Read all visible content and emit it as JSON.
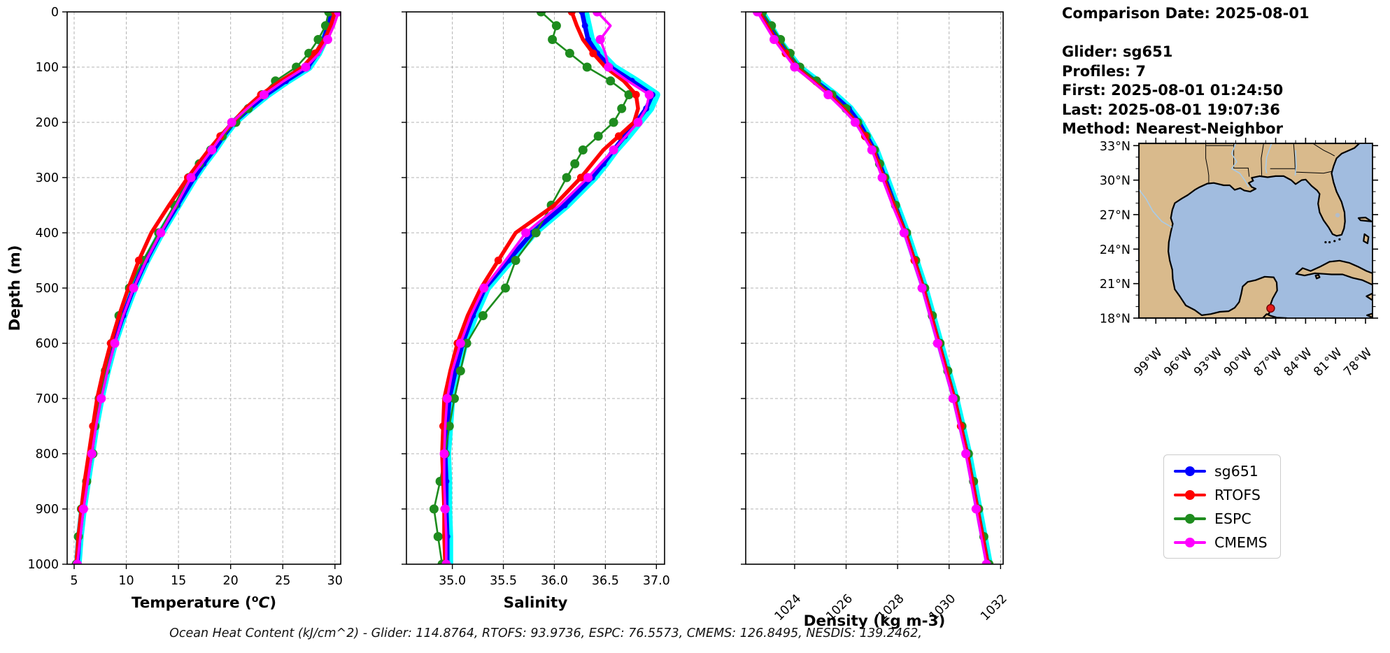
{
  "info_panel": {
    "lines": [
      "Comparison Date: 2025-08-01",
      "",
      "Glider: sg651",
      "Profiles: 7",
      "First: 2025-08-01 01:24:50",
      "Last: 2025-08-01 19:07:36",
      "Method: Nearest-Neighbor"
    ]
  },
  "legend": {
    "items": [
      {
        "label": "sg651",
        "color": "#0000ff"
      },
      {
        "label": "RTOFS",
        "color": "#ff0000"
      },
      {
        "label": "ESPC",
        "color": "#1e8c1e"
      },
      {
        "label": "CMEMS",
        "color": "#ff00ff"
      }
    ]
  },
  "caption": "Ocean Heat Content (kJ/cm^2) - Glider: 114.8764,  RTOFS: 93.9736,  ESPC: 76.5573,  CMEMS: 126.8495,  NESDIS: 139.2462,",
  "chart_data": [
    {
      "type": "line",
      "id": "temperature",
      "xlabel": {
        "pre": "Temperature (",
        "sup": "o",
        "it": "C",
        "post": ")"
      },
      "ylabel": "Depth (m)",
      "xlim": [
        4.33,
        30.55
      ],
      "ylim": [
        0,
        1000
      ],
      "xticks": [
        5,
        10,
        15,
        20,
        25,
        30
      ],
      "xtick_labels": [
        "5",
        "10",
        "15",
        "20",
        "25",
        "30"
      ],
      "yticks": [
        0,
        100,
        200,
        300,
        400,
        500,
        600,
        700,
        800,
        900,
        1000
      ],
      "ytick_labels": [
        "0",
        "100",
        "200",
        "300",
        "400",
        "500",
        "600",
        "700",
        "800",
        "900",
        "1000"
      ],
      "show_ytick_labels": true,
      "grid": true,
      "depths": [
        0,
        25,
        50,
        75,
        100,
        125,
        150,
        175,
        200,
        225,
        250,
        275,
        300,
        350,
        400,
        450,
        500,
        550,
        600,
        650,
        700,
        750,
        800,
        850,
        900,
        950,
        1000
      ],
      "series": [
        {
          "name": "glider-profiles",
          "color": "#00ffff",
          "role": "underlay",
          "values": [
            29.9,
            29.5,
            29.0,
            28.4,
            27.5,
            25.4,
            23.5,
            21.85,
            20.35,
            19.35,
            18.45,
            17.45,
            16.55,
            14.95,
            13.35,
            11.95,
            10.75,
            9.75,
            8.85,
            8.15,
            7.55,
            7.05,
            6.65,
            6.25,
            5.85,
            5.55,
            5.35
          ]
        },
        {
          "name": "sg651",
          "color": "#0000ff",
          "values": [
            29.7,
            29.35,
            28.9,
            28.3,
            27.4,
            25.3,
            23.4,
            21.8,
            20.3,
            19.3,
            18.4,
            17.4,
            16.5,
            14.9,
            13.3,
            11.9,
            10.7,
            9.7,
            8.8,
            8.1,
            7.5,
            7.0,
            6.6,
            6.2,
            5.8,
            5.5,
            5.3
          ]
        },
        {
          "name": "ESPC",
          "color": "#1e8c1e",
          "values": [
            29.4,
            29.1,
            28.4,
            27.5,
            26.3,
            24.3,
            23.0,
            21.7,
            20.5,
            19.2,
            18.1,
            17.0,
            16.0,
            14.6,
            13.1,
            11.6,
            10.3,
            9.3,
            8.6,
            8.0,
            7.4,
            7.0,
            6.8,
            6.2,
            5.7,
            5.4,
            5.2
          ]
        },
        {
          "name": "RTOFS",
          "color": "#ff0000",
          "values": [
            30.0,
            29.6,
            29.0,
            28.1,
            26.9,
            24.8,
            22.9,
            21.4,
            20.2,
            19.0,
            17.9,
            16.9,
            15.9,
            14.1,
            12.4,
            11.2,
            10.2,
            9.3,
            8.5,
            7.8,
            7.2,
            6.8,
            6.4,
            6.0,
            5.7,
            5.4,
            5.2
          ]
        },
        {
          "name": "CMEMS",
          "color": "#ff00ff",
          "values": [
            30.35,
            29.9,
            29.3,
            28.5,
            27.2,
            25.1,
            23.2,
            21.6,
            20.1,
            19.1,
            18.2,
            17.2,
            16.2,
            14.8,
            13.3,
            11.9,
            10.7,
            9.7,
            8.9,
            8.2,
            7.6,
            7.1,
            6.7,
            6.3,
            5.9,
            5.6,
            5.3
          ]
        }
      ]
    },
    {
      "type": "line",
      "id": "salinity",
      "xlabel": {
        "pre": "Salinity"
      },
      "xlim": [
        34.55,
        37.08
      ],
      "ylim": [
        0,
        1000
      ],
      "xticks": [
        35.0,
        35.5,
        36.0,
        36.5,
        37.0
      ],
      "xtick_labels": [
        "35.0",
        "35.5",
        "36.0",
        "36.5",
        "37.0"
      ],
      "yticks": [
        0,
        100,
        200,
        300,
        400,
        500,
        600,
        700,
        800,
        900,
        1000
      ],
      "show_ytick_labels": false,
      "grid": true,
      "depths": [
        0,
        25,
        50,
        75,
        100,
        125,
        150,
        175,
        200,
        225,
        250,
        275,
        300,
        350,
        400,
        450,
        500,
        550,
        600,
        650,
        700,
        750,
        800,
        850,
        900,
        950,
        1000
      ],
      "series": [
        {
          "name": "glider-profiles",
          "color": "#00ffff",
          "role": "underlay",
          "values": [
            36.3,
            36.33,
            36.36,
            36.45,
            36.58,
            36.8,
            37.0,
            36.94,
            36.83,
            36.72,
            36.6,
            36.5,
            36.39,
            36.12,
            35.8,
            35.57,
            35.34,
            35.22,
            35.12,
            35.05,
            34.99,
            34.97,
            34.95,
            34.96,
            34.96,
            34.97,
            34.97
          ]
        },
        {
          "name": "sg651",
          "color": "#0000ff",
          "values": [
            36.27,
            36.3,
            36.33,
            36.42,
            36.55,
            36.76,
            36.96,
            36.9,
            36.8,
            36.69,
            36.58,
            36.48,
            36.37,
            36.1,
            35.78,
            35.55,
            35.32,
            35.2,
            35.1,
            35.03,
            34.97,
            34.95,
            34.93,
            34.94,
            34.94,
            34.95,
            34.95
          ]
        },
        {
          "name": "ESPC",
          "color": "#1e8c1e",
          "values": [
            35.87,
            36.02,
            35.98,
            36.15,
            36.32,
            36.55,
            36.73,
            36.66,
            36.58,
            36.43,
            36.28,
            36.2,
            36.12,
            35.97,
            35.82,
            35.62,
            35.52,
            35.3,
            35.14,
            35.08,
            35.02,
            34.97,
            34.93,
            34.88,
            34.82,
            34.86,
            34.9
          ]
        },
        {
          "name": "RTOFS",
          "color": "#ff0000",
          "values": [
            36.17,
            36.22,
            36.28,
            36.38,
            36.5,
            36.68,
            36.8,
            36.82,
            36.78,
            36.63,
            36.48,
            36.37,
            36.26,
            36.0,
            35.62,
            35.45,
            35.28,
            35.15,
            35.05,
            34.98,
            34.92,
            34.91,
            34.9,
            34.91,
            34.92,
            34.92,
            34.93
          ]
        },
        {
          "name": "CMEMS",
          "color": "#ff00ff",
          "values": [
            36.42,
            36.55,
            36.45,
            36.5,
            36.53,
            36.72,
            36.93,
            36.9,
            36.82,
            36.7,
            36.58,
            36.45,
            36.33,
            36.05,
            35.72,
            35.52,
            35.31,
            35.18,
            35.08,
            35.0,
            34.95,
            34.93,
            34.92,
            34.92,
            34.93,
            34.94,
            34.94
          ]
        }
      ]
    },
    {
      "type": "line",
      "id": "density",
      "xlabel": {
        "pre": "Density (kg m-3)"
      },
      "xlim": [
        1022.1,
        1032.1
      ],
      "ylim": [
        0,
        1000
      ],
      "xticks": [
        1024,
        1026,
        1028,
        1030,
        1032
      ],
      "xtick_labels": [
        "1024",
        "1026",
        "1028",
        "1030",
        "1032"
      ],
      "xtick_rotated": true,
      "yticks": [
        0,
        100,
        200,
        300,
        400,
        500,
        600,
        700,
        800,
        900,
        1000
      ],
      "show_ytick_labels": false,
      "grid": true,
      "depths": [
        0,
        25,
        50,
        75,
        100,
        125,
        150,
        175,
        200,
        225,
        250,
        275,
        300,
        350,
        400,
        450,
        500,
        550,
        600,
        650,
        700,
        750,
        800,
        850,
        900,
        950,
        1000
      ],
      "series": [
        {
          "name": "glider-profiles",
          "color": "#00ffff",
          "role": "underlay",
          "values": [
            1022.7,
            1023.03,
            1023.35,
            1023.75,
            1024.15,
            1024.85,
            1025.55,
            1026.15,
            1026.55,
            1026.85,
            1027.15,
            1027.35,
            1027.55,
            1027.95,
            1028.35,
            1028.7,
            1029.05,
            1029.35,
            1029.65,
            1029.95,
            1030.25,
            1030.5,
            1030.75,
            1030.95,
            1031.15,
            1031.35,
            1031.55
          ]
        },
        {
          "name": "sg651",
          "color": "#0000ff",
          "values": [
            1022.65,
            1022.98,
            1023.3,
            1023.7,
            1024.1,
            1024.8,
            1025.5,
            1026.1,
            1026.5,
            1026.8,
            1027.1,
            1027.3,
            1027.5,
            1027.9,
            1028.3,
            1028.65,
            1029.0,
            1029.3,
            1029.6,
            1029.9,
            1030.2,
            1030.45,
            1030.7,
            1030.9,
            1031.1,
            1031.3,
            1031.5
          ]
        },
        {
          "name": "ESPC",
          "color": "#1e8c1e",
          "values": [
            1022.75,
            1023.1,
            1023.45,
            1023.82,
            1024.2,
            1024.85,
            1025.45,
            1026.0,
            1026.45,
            1026.78,
            1027.1,
            1027.3,
            1027.5,
            1027.92,
            1028.35,
            1028.7,
            1029.05,
            1029.35,
            1029.65,
            1029.95,
            1030.25,
            1030.5,
            1030.75,
            1030.95,
            1031.15,
            1031.35,
            1031.55
          ]
        },
        {
          "name": "RTOFS",
          "color": "#ff0000",
          "values": [
            1022.6,
            1022.93,
            1023.25,
            1023.65,
            1024.05,
            1024.7,
            1025.35,
            1025.9,
            1026.4,
            1026.73,
            1027.05,
            1027.25,
            1027.45,
            1027.85,
            1028.3,
            1028.65,
            1029.0,
            1029.3,
            1029.6,
            1029.9,
            1030.2,
            1030.45,
            1030.7,
            1030.9,
            1031.1,
            1031.3,
            1031.5
          ]
        },
        {
          "name": "CMEMS",
          "color": "#ff00ff",
          "values": [
            1022.55,
            1022.88,
            1023.2,
            1023.6,
            1024.0,
            1024.68,
            1025.3,
            1025.85,
            1026.35,
            1026.68,
            1027.0,
            1027.2,
            1027.4,
            1027.8,
            1028.25,
            1028.6,
            1028.95,
            1029.25,
            1029.55,
            1029.85,
            1030.15,
            1030.4,
            1030.65,
            1030.85,
            1031.05,
            1031.25,
            1031.45
          ]
        }
      ]
    }
  ],
  "map": {
    "extent": {
      "lon_min": -100.7,
      "lon_max": -77.3,
      "lat_min": 18,
      "lat_max": 33.2
    },
    "lat_ticks": [
      {
        "v": 33,
        "label": "33°N"
      },
      {
        "v": 30,
        "label": "30°N"
      },
      {
        "v": 27,
        "label": "27°N"
      },
      {
        "v": 24,
        "label": "24°N"
      },
      {
        "v": 21,
        "label": "21°N"
      },
      {
        "v": 18,
        "label": "18°N"
      }
    ],
    "lon_ticks": [
      {
        "v": -99,
        "label": "99°W"
      },
      {
        "v": -96,
        "label": "96°W"
      },
      {
        "v": -93,
        "label": "93°W"
      },
      {
        "v": -90,
        "label": "90°W"
      },
      {
        "v": -87,
        "label": "87°W"
      },
      {
        "v": -84,
        "label": "84°W"
      },
      {
        "v": -81,
        "label": "81°W"
      },
      {
        "v": -78,
        "label": "78°W"
      }
    ],
    "colors": {
      "land": "#d9ba8c",
      "ocean": "#a1bcdf",
      "coast": "#000000",
      "river": "#a8cbe8",
      "marker": "#e31a1a",
      "lake": "#b3bdc9"
    },
    "marker": {
      "lon": -87.5,
      "lat": 18.85
    }
  }
}
